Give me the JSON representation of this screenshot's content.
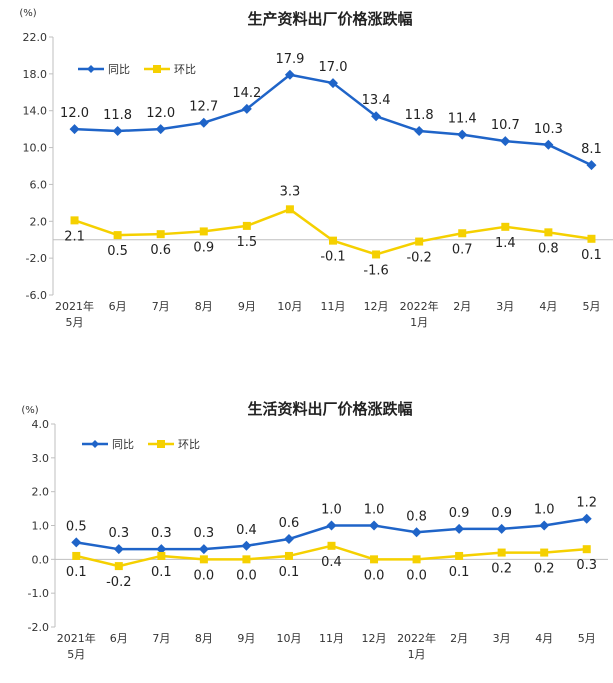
{
  "colors": {
    "yoy": "#1f64c8",
    "mom": "#f5d000",
    "axis": "#bfbfbf",
    "text": "#333333"
  },
  "chart_data": [
    {
      "type": "line",
      "title": "生产资料出厂价格涨跌幅",
      "unit": "(%)",
      "ylim": [
        -6.0,
        22.0
      ],
      "yticks": [
        "22.0",
        "18.0",
        "14.0",
        "10.0",
        "6.0",
        "2.0",
        "-2.0",
        "-6.0"
      ],
      "ytick_values": [
        22,
        18,
        14,
        10,
        6,
        2,
        -2,
        -6
      ],
      "categories": [
        [
          "2021年",
          "5月"
        ],
        [
          "6月"
        ],
        [
          "7月"
        ],
        [
          "8月"
        ],
        [
          "9月"
        ],
        [
          "10月"
        ],
        [
          "11月"
        ],
        [
          "12月"
        ],
        [
          "2022年",
          "1月"
        ],
        [
          "2月"
        ],
        [
          "3月"
        ],
        [
          "4月"
        ],
        [
          "5月"
        ]
      ],
      "legend_position": "top-left",
      "grid": false,
      "series": [
        {
          "name": "同比",
          "marker": "diamond",
          "values": [
            12.0,
            11.8,
            12.0,
            12.7,
            14.2,
            17.9,
            17.0,
            13.4,
            11.8,
            11.4,
            10.7,
            10.3,
            8.1
          ],
          "labels": [
            "12.0",
            "11.8",
            "12.0",
            "12.7",
            "14.2",
            "17.9",
            "17.0",
            "13.4",
            "11.8",
            "11.4",
            "10.7",
            "10.3",
            "8.1"
          ]
        },
        {
          "name": "环比",
          "marker": "square",
          "values": [
            2.1,
            0.5,
            0.6,
            0.9,
            1.5,
            3.3,
            -0.1,
            -1.6,
            -0.2,
            0.7,
            1.4,
            0.8,
            0.1
          ],
          "labels": [
            "2.1",
            "0.5",
            "0.6",
            "0.9",
            "1.5",
            "3.3",
            "-0.1",
            "-1.6",
            "-0.2",
            "0.7",
            "1.4",
            "0.8",
            "0.1"
          ]
        }
      ]
    },
    {
      "type": "line",
      "title": "生活资料出厂价格涨跌幅",
      "unit": "(%)",
      "ylim": [
        -2.0,
        4.0
      ],
      "yticks": [
        "4.0",
        "3.0",
        "2.0",
        "1.0",
        "0.0",
        "-1.0",
        "-2.0"
      ],
      "ytick_values": [
        4,
        3,
        2,
        1,
        0,
        -1,
        -2
      ],
      "categories": [
        [
          "2021年",
          "5月"
        ],
        [
          "6月"
        ],
        [
          "7月"
        ],
        [
          "8月"
        ],
        [
          "9月"
        ],
        [
          "10月"
        ],
        [
          "11月"
        ],
        [
          "12月"
        ],
        [
          "2022年",
          "1月"
        ],
        [
          "2月"
        ],
        [
          "3月"
        ],
        [
          "4月"
        ],
        [
          "5月"
        ]
      ],
      "legend_position": "top-left",
      "grid": false,
      "series": [
        {
          "name": "同比",
          "marker": "diamond",
          "values": [
            0.5,
            0.3,
            0.3,
            0.3,
            0.4,
            0.6,
            1.0,
            1.0,
            0.8,
            0.9,
            0.9,
            1.0,
            1.2
          ],
          "labels": [
            "0.5",
            "0.3",
            "0.3",
            "0.3",
            "0.4",
            "0.6",
            "1.0",
            "1.0",
            "0.8",
            "0.9",
            "0.9",
            "1.0",
            "1.2"
          ]
        },
        {
          "name": "环比",
          "marker": "square",
          "values": [
            0.1,
            -0.2,
            0.1,
            0.0,
            0.0,
            0.1,
            0.4,
            0.0,
            0.0,
            0.1,
            0.2,
            0.2,
            0.3
          ],
          "labels": [
            "0.1",
            "-0.2",
            "0.1",
            "0.0",
            "0.0",
            "0.1",
            "0.4",
            "0.0",
            "0.0",
            "0.1",
            "0.2",
            "0.2",
            "0.3"
          ]
        }
      ]
    }
  ]
}
